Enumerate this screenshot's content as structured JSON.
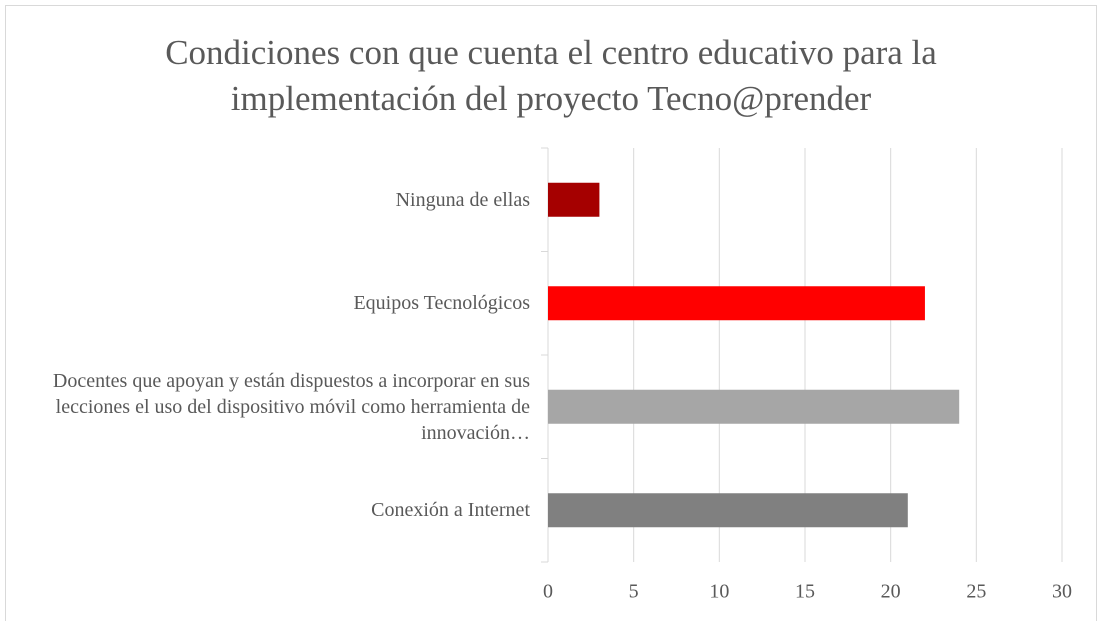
{
  "chart_data": {
    "type": "bar",
    "orientation": "horizontal",
    "title": "Condiciones con que cuenta el centro educativo para la implementación del proyecto Tecno@prender",
    "categories": [
      "Ninguna de ellas",
      "Equipos Tecnológicos",
      "Docentes que apoyan y están dispuestos a incorporar en sus lecciones el uso del dispositivo móvil como herramienta de innovación…",
      "Conexión a Internet"
    ],
    "values": [
      3,
      22,
      24,
      21
    ],
    "colors": [
      "#a50000",
      "#ff0000",
      "#a6a6a6",
      "#808080"
    ],
    "xlim": [
      0,
      30
    ],
    "xticks": [
      0,
      5,
      10,
      15,
      20,
      25,
      30
    ],
    "grid": true
  }
}
